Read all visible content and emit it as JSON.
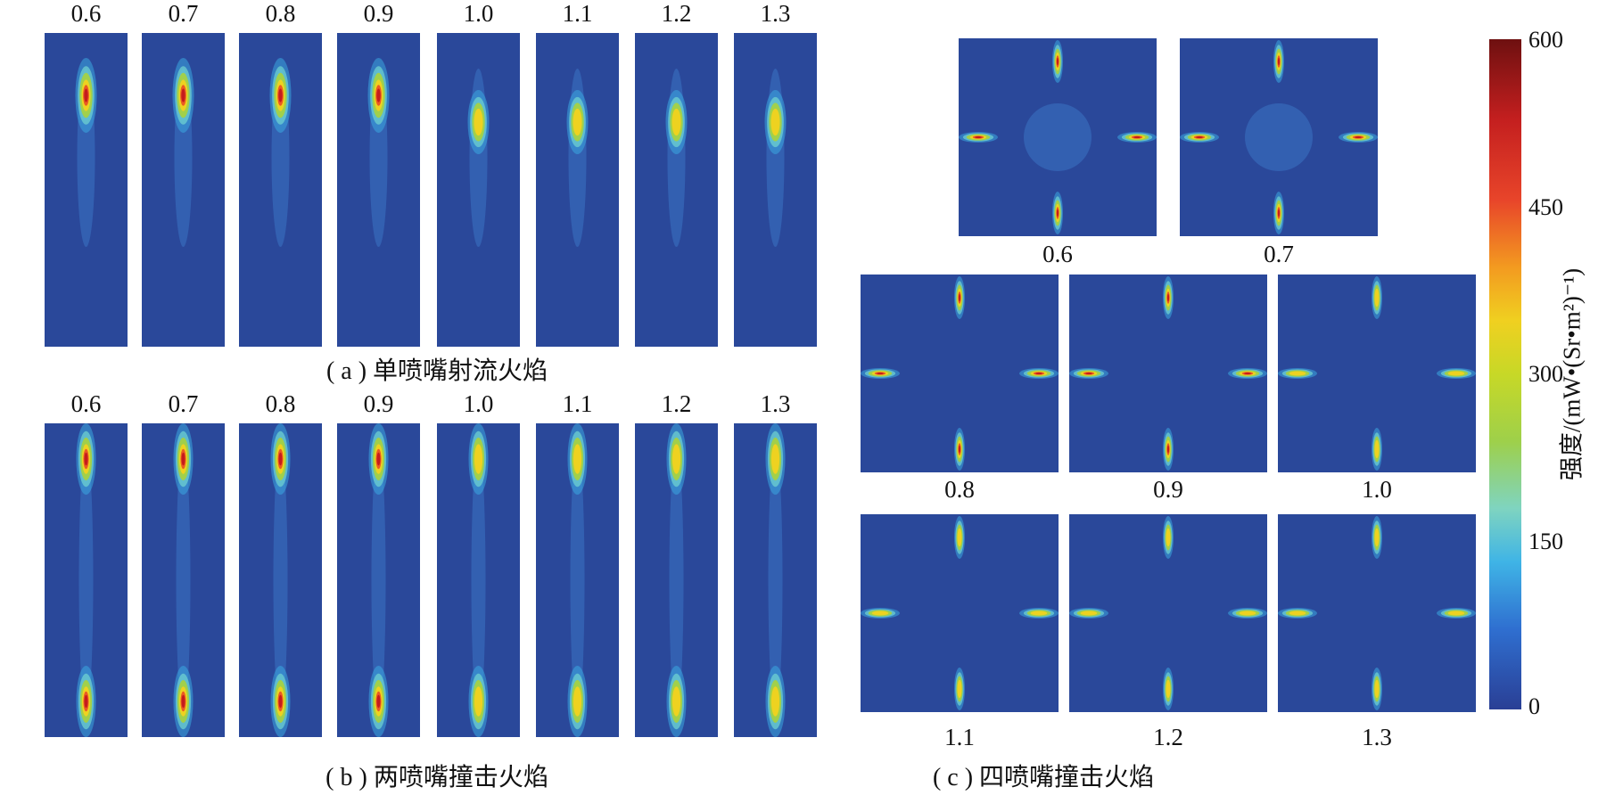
{
  "panel_a": {
    "caption": "( a ) 单喷嘴射流火焰",
    "labels": [
      "0.6",
      "0.7",
      "0.8",
      "0.9",
      "1.0",
      "1.1",
      "1.2",
      "1.3"
    ]
  },
  "panel_b": {
    "caption": "( b ) 两喷嘴撞击火焰",
    "labels": [
      "0.6",
      "0.7",
      "0.8",
      "0.9",
      "1.0",
      "1.1",
      "1.2",
      "1.3"
    ]
  },
  "panel_c": {
    "caption": "( c ) 四喷嘴撞击火焰",
    "labels": [
      "0.6",
      "0.7",
      "0.8",
      "0.9",
      "1.0",
      "1.1",
      "1.2",
      "1.3"
    ]
  },
  "colorbar": {
    "title": "强度/(mW•(Sr•m²)⁻¹)",
    "ticks": [
      "600",
      "450",
      "300",
      "150",
      "0"
    ],
    "colors": [
      "#2a3f95",
      "#3fb4e6",
      "#9ed04a",
      "#f0d020",
      "#e8452a",
      "#6e1010"
    ]
  }
}
